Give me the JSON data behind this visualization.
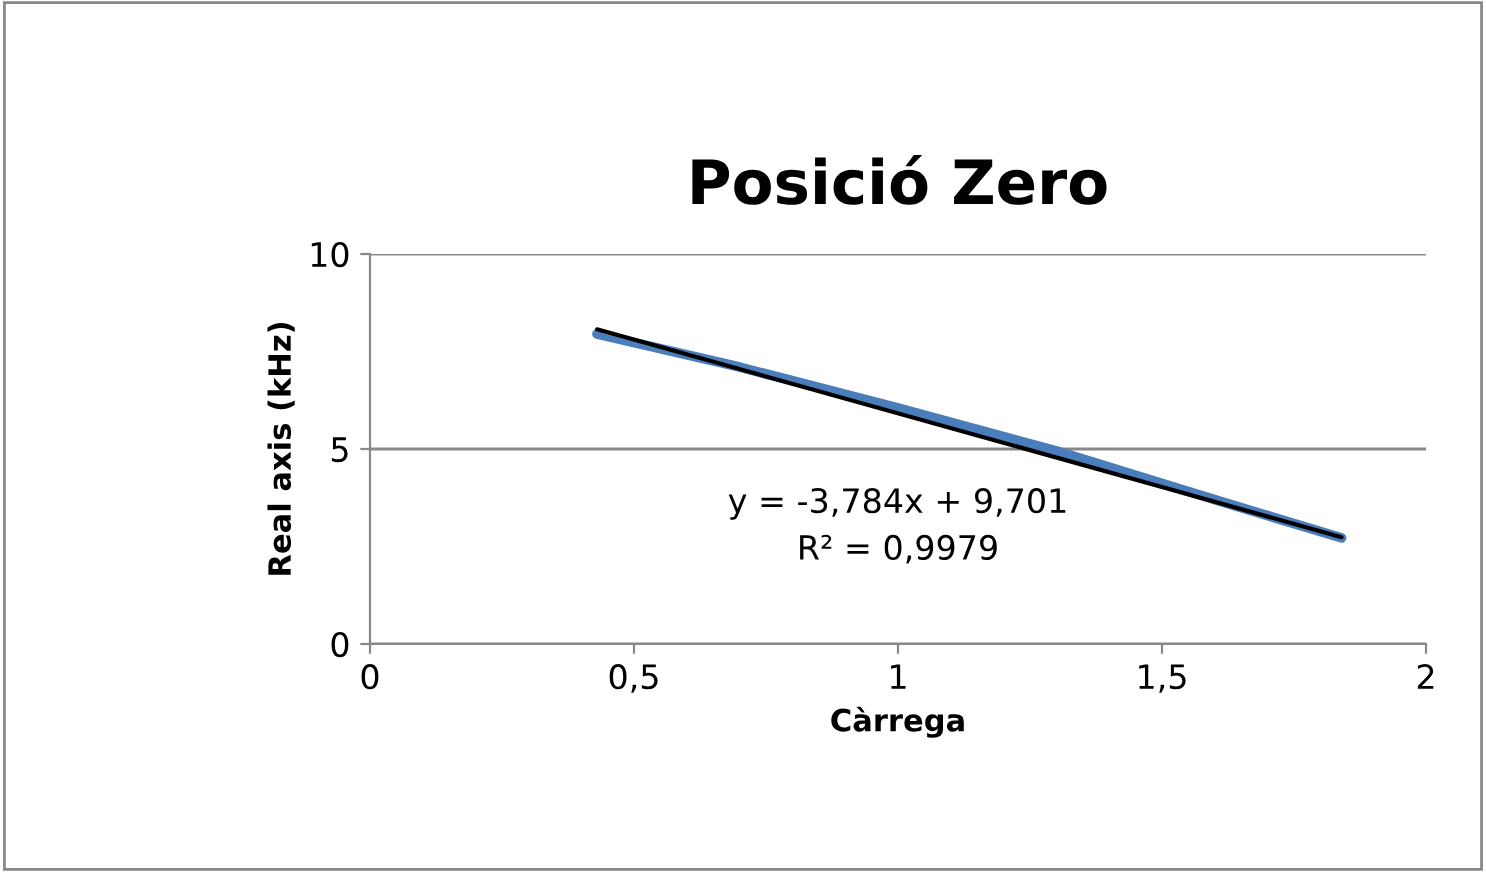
{
  "chart_data": {
    "type": "line",
    "title": "Posició Zero",
    "xlabel": "Càrrega",
    "ylabel": "Real axis (kHz)",
    "series": [
      {
        "color": "#4a7ebb",
        "x": [
          0.43,
          0.7,
          1.0,
          1.3,
          1.6,
          1.84
        ],
        "values": [
          7.95,
          7.1,
          6.05,
          4.95,
          3.7,
          2.72
        ]
      },
      {
        "type": "line",
        "color": "#000000",
        "x": [
          0.43,
          1.84
        ],
        "values": [
          8.07,
          2.74
        ]
      }
    ],
    "annotations": [
      "y = -3,784x + 9,701",
      "R² = 0,9979"
    ],
    "xlim": [
      0,
      2
    ],
    "xticks": [
      0,
      {
        "value": 0.5,
        "label": "0,5"
      },
      1,
      {
        "value": 1.5,
        "label": "1,5"
      },
      2
    ],
    "ylim": [
      0,
      10
    ],
    "yticks": [
      0,
      5,
      10
    ],
    "grid": "y"
  }
}
